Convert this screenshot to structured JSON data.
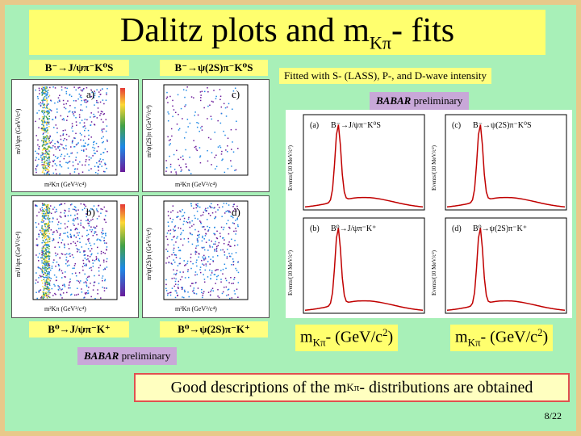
{
  "title": {
    "main": "Dalitz plots and m",
    "sub": "Kπ",
    "suffix": "- fits"
  },
  "dalitz_labels": {
    "top_left": "B⁻→J/ψπ⁻K⁰S",
    "top_right": "B⁻→ψ(2S)π⁻K⁰S",
    "bottom_left": "B⁰→J/ψπ⁻K⁺",
    "bottom_right": "B⁰→ψ(2S)π⁻K⁺"
  },
  "panel_letters": {
    "a": "a)",
    "b": "b)",
    "c": "c)",
    "d": "d)"
  },
  "dalitz_axes": {
    "y_top_left": "m²J/ψπ (GeV²/c⁴)",
    "y_top_right": "m²ψ(2S)π (GeV²/c⁴)",
    "x": "m²Kπ (GeV²/c⁴)"
  },
  "fit_note": "Fitted with S- (LASS), P-, and D-wave intensity",
  "babar_top": {
    "name": "BABAR",
    "rest": " preliminary"
  },
  "babar_bottom": {
    "name": "BABAR",
    "rest": " preliminary"
  },
  "fit_panels": {
    "a": "(a)",
    "a_decay": "B⁻→J/ψπ⁻K⁰S",
    "c": "(c)",
    "c_decay": "B⁻→ψ(2S)π⁻K⁰S",
    "b": "(b)",
    "b_decay": "B⁰→J/ψπ⁻K⁺",
    "d": "(d)",
    "d_decay": "B⁰→ψ(2S)π⁻K⁺",
    "y_label": "Events/(10 MeV/c²)"
  },
  "fit_axis_left": {
    "main": "m",
    "sub": "Kπ",
    "rest": "- (GeV/c",
    "sup": "2",
    "end": ")"
  },
  "fit_axis_right": {
    "main": "m",
    "sub": "Kπ",
    "rest": "- (GeV/c",
    "sup": "2",
    "end": ")"
  },
  "conclusion": {
    "pre": "Good descriptions of the m",
    "sub": "Kπ",
    "post": "- distributions are obtained"
  },
  "page": "8/22",
  "colors": {
    "background": "#a8f0b8",
    "title": "#ffff6e",
    "label": "#ffff80",
    "babar": "#c8a8d8",
    "border": "#e8c98a",
    "conclusion_border": "#e05050"
  }
}
